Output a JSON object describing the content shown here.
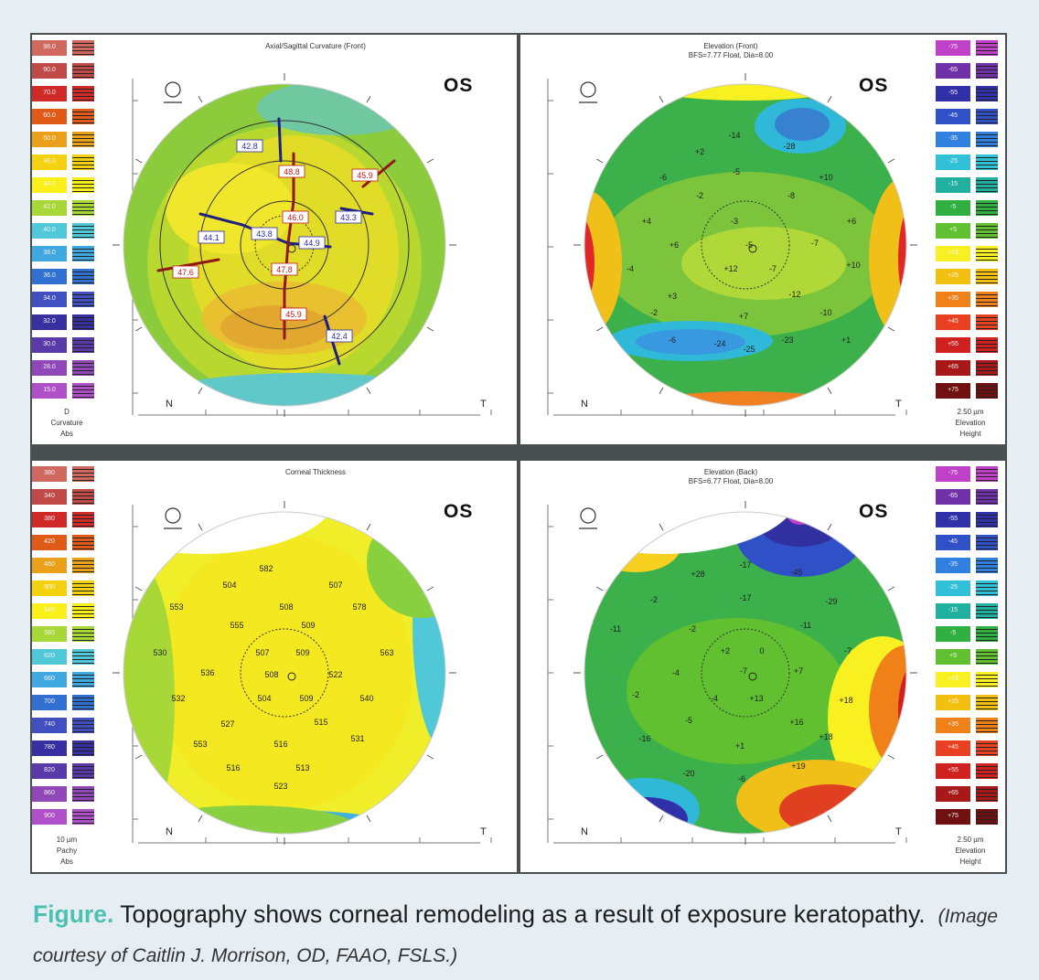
{
  "caption": {
    "lead": "Figure.",
    "text": " Topography shows corneal remodeling as a result of exposure keratopathy.",
    "credit": "(Image courtesy of Caitlin J. Morrison, OD, FAAO, FSLS.)"
  },
  "panels": [
    {
      "id": "axial-curvature",
      "title_lines": [
        "Axial/Sagittal Curvature (Front)"
      ],
      "eye": "OS",
      "n_label": "N",
      "t_label": "T",
      "scale_side": "left",
      "scale_values": [
        "98.0",
        "90.0",
        "70.0",
        "60.0",
        "50.0",
        "46.0",
        "44.0",
        "42.0",
        "40.0",
        "38.0",
        "36.0",
        "34.0",
        "32.0",
        "30.0",
        "28.0",
        "15.0"
      ],
      "scale_colors": [
        "#d06860",
        "#c04a48",
        "#d02a28",
        "#e05a18",
        "#eaa018",
        "#f4d210",
        "#f8f018",
        "#a8d838",
        "#50c8d8",
        "#40a8e0",
        "#3070d0",
        "#4050c0",
        "#3830a0",
        "#5a3aa8",
        "#9048b8",
        "#b050c8"
      ],
      "scale_footer": [
        "D",
        "Curvature",
        "Abs"
      ],
      "labels": [
        {
          "t": "42.8",
          "c": "#2a2ab0",
          "bg": "#ffffff"
        },
        {
          "t": "48.8",
          "c": "#c01818",
          "bg": "#ffffff"
        },
        {
          "t": "45.9",
          "c": "#c01818",
          "bg": "#ffffff"
        },
        {
          "t": "46.0",
          "c": "#c01818",
          "bg": "#ffffff"
        },
        {
          "t": "43.3",
          "c": "#2a2ab0",
          "bg": "#ffffff"
        },
        {
          "t": "43.8",
          "c": "#2a2ab0",
          "bg": "#ffffff"
        },
        {
          "t": "44.1",
          "c": "#2a2ab0",
          "bg": "#ffffff"
        },
        {
          "t": "44.9",
          "c": "#2a2ab0",
          "bg": "#ffffff"
        },
        {
          "t": "47.6",
          "c": "#c01818",
          "bg": "#ffffff"
        },
        {
          "t": "47.8",
          "c": "#c01818",
          "bg": "#ffffff"
        },
        {
          "t": "45.9",
          "c": "#c01818",
          "bg": "#ffffff"
        },
        {
          "t": "42.4",
          "c": "#2a2ab0",
          "bg": "#ffffff"
        }
      ]
    },
    {
      "id": "elevation-front",
      "title_lines": [
        "Elevation (Front)",
        "BFS=7.77 Float, Dia=8.00"
      ],
      "eye": "OS",
      "n_label": "N",
      "t_label": "T",
      "scale_side": "right",
      "scale_values": [
        "-75",
        "-65",
        "-55",
        "-45",
        "-35",
        "-25",
        "-15",
        "-5",
        "+5",
        "+15",
        "+25",
        "+35",
        "+45",
        "+55",
        "+65",
        "+75"
      ],
      "scale_colors": [
        "#c040c8",
        "#7030a8",
        "#3030a8",
        "#3050c8",
        "#3080e0",
        "#30c0d8",
        "#20b0a0",
        "#30b040",
        "#60c030",
        "#f8f020",
        "#f4c010",
        "#f08018",
        "#e84020",
        "#d02020",
        "#a81818",
        "#701010"
      ],
      "scale_footer": [
        "2.50 µm",
        "Elevation",
        "Height"
      ],
      "values": [
        "-14",
        "-28",
        "+2",
        "-5",
        "+10",
        "-6",
        "-2",
        "-8",
        "+4",
        "+6",
        "-3",
        "+6",
        "-5",
        "-7",
        "-4",
        "+12",
        "-7",
        "+10",
        "+3",
        "-12",
        "-2",
        "+7",
        "-10",
        "-6",
        "-24",
        "-25",
        "-23",
        "+1"
      ]
    },
    {
      "id": "corneal-thickness",
      "title_lines": [
        "Corneal Thickness"
      ],
      "eye": "OS",
      "n_label": "N",
      "t_label": "T",
      "scale_side": "left",
      "scale_values": [
        "380",
        "340",
        "380",
        "420",
        "460",
        "500",
        "540",
        "580",
        "620",
        "660",
        "700",
        "740",
        "780",
        "820",
        "860",
        "900"
      ],
      "scale_colors": [
        "#d06860",
        "#c04a48",
        "#d02a28",
        "#e05a18",
        "#eaa018",
        "#f4d210",
        "#f8f018",
        "#a8d838",
        "#50c8d8",
        "#40a8e0",
        "#3070d0",
        "#4050c0",
        "#3830a0",
        "#5a3aa8",
        "#9048b8",
        "#b050c8"
      ],
      "scale_footer": [
        "10 µm",
        "Pachy",
        "Abs"
      ],
      "values": [
        "582",
        "504",
        "507",
        "553",
        "508",
        "578",
        "555",
        "509",
        "530",
        "507",
        "509",
        "563",
        "536",
        "508",
        "522",
        "532",
        "504",
        "509",
        "540",
        "527",
        "515",
        "553",
        "516",
        "531",
        "516",
        "513",
        "523"
      ]
    },
    {
      "id": "elevation-back",
      "title_lines": [
        "Elevation (Back)",
        "BFS=6.77 Float, Dia=8.00"
      ],
      "eye": "OS",
      "n_label": "N",
      "t_label": "T",
      "scale_side": "right",
      "scale_values": [
        "-75",
        "-65",
        "-55",
        "-45",
        "-35",
        "-25",
        "-15",
        "-5",
        "+5",
        "+15",
        "+25",
        "+35",
        "+45",
        "+55",
        "+65",
        "+75"
      ],
      "scale_colors": [
        "#c040c8",
        "#7030a8",
        "#3030a8",
        "#3050c8",
        "#3080e0",
        "#30c0d8",
        "#20b0a0",
        "#30b040",
        "#60c030",
        "#f8f020",
        "#f4c010",
        "#f08018",
        "#e84020",
        "#d02020",
        "#a81818",
        "#701010"
      ],
      "scale_footer": [
        "2.50 µm",
        "Elevation",
        "Height"
      ],
      "values": [
        "+28",
        "-17",
        "-45",
        "-2",
        "-11",
        "-29",
        "-2",
        "-17",
        "-11",
        "+2",
        "0",
        "-7",
        "-4",
        "-7",
        "+7",
        "-2",
        "-4",
        "+13",
        "+18",
        "-5",
        "+16",
        "-16",
        "+1",
        "+18",
        "-20",
        "-6",
        "+19"
      ]
    }
  ]
}
